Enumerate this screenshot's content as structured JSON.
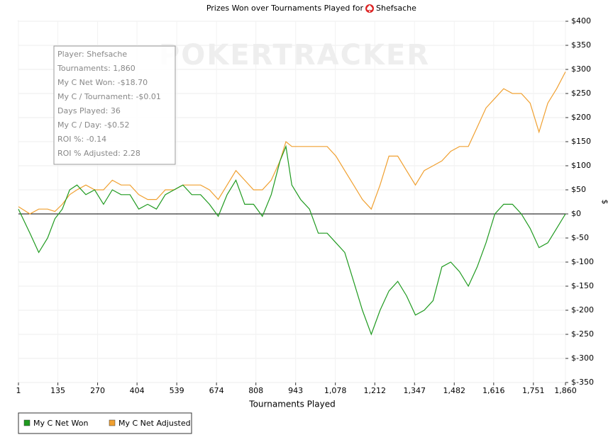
{
  "chart_data": {
    "type": "line",
    "title": "Prizes Won over Tournaments Played for",
    "player": "Shefsache",
    "watermark": "POKERTRACKER",
    "x_label": "Tournaments Played",
    "y_label": "$",
    "info_box": [
      "Player: Shefsache",
      "Tournaments: 1,860",
      "My C Net Won: -$18.70",
      "My C / Tournament: -$0.01",
      "Days Played: 36",
      "My C / Day: -$0.52",
      "ROI %: -0.14",
      "ROI % Adjusted: 2.28"
    ],
    "x": [
      1,
      40,
      70,
      100,
      125,
      150,
      175,
      200,
      230,
      260,
      290,
      320,
      350,
      380,
      410,
      440,
      470,
      500,
      530,
      560,
      590,
      620,
      650,
      680,
      710,
      740,
      770,
      800,
      830,
      860,
      890,
      910,
      930,
      960,
      990,
      1020,
      1050,
      1080,
      1110,
      1140,
      1170,
      1200,
      1230,
      1260,
      1290,
      1320,
      1350,
      1380,
      1410,
      1440,
      1470,
      1500,
      1530,
      1560,
      1590,
      1620,
      1650,
      1680,
      1710,
      1740,
      1770,
      1800,
      1830,
      1860
    ],
    "series": [
      {
        "name": "My C Net Won",
        "color": "#1f9a1f",
        "values": [
          10,
          -40,
          -80,
          -50,
          -10,
          10,
          50,
          60,
          40,
          50,
          20,
          50,
          40,
          40,
          10,
          20,
          10,
          40,
          50,
          60,
          40,
          40,
          20,
          -5,
          40,
          70,
          20,
          20,
          -5,
          40,
          110,
          140,
          60,
          30,
          10,
          -40,
          -40,
          -60,
          -80,
          -140,
          -200,
          -250,
          -200,
          -160,
          -140,
          -170,
          -210,
          -200,
          -180,
          -110,
          -100,
          -120,
          -150,
          -110,
          -60,
          0,
          20,
          20,
          0,
          -30,
          -70,
          -60,
          -30,
          0
        ]
      },
      {
        "name": "My C Net Adjusted",
        "color": "#f0a030",
        "values": [
          15,
          0,
          10,
          10,
          5,
          20,
          40,
          50,
          60,
          50,
          50,
          70,
          60,
          60,
          40,
          30,
          30,
          50,
          50,
          60,
          60,
          60,
          50,
          30,
          60,
          90,
          70,
          50,
          50,
          70,
          110,
          150,
          140,
          140,
          140,
          140,
          140,
          120,
          90,
          60,
          30,
          10,
          60,
          120,
          120,
          90,
          60,
          90,
          100,
          110,
          130,
          140,
          140,
          180,
          220,
          240,
          260,
          250,
          250,
          230,
          170,
          230,
          260,
          295
        ]
      }
    ],
    "xlim": [
      1,
      1860
    ],
    "xticks": [
      1,
      135,
      270,
      404,
      539,
      674,
      808,
      943,
      {
        "value": 1078,
        "label": "1,078"
      },
      {
        "value": 1212,
        "label": "1,212"
      },
      {
        "value": 1347,
        "label": "1,347"
      },
      {
        "value": 1482,
        "label": "1,482"
      },
      {
        "value": 1616,
        "label": "1,616"
      },
      {
        "value": 1751,
        "label": "1,751"
      },
      {
        "value": 1860,
        "label": "1,860"
      }
    ],
    "ylim": [
      -350,
      400
    ],
    "yticks": [
      {
        "value": -350,
        "label": "$-350"
      },
      {
        "value": -300,
        "label": "$-300"
      },
      {
        "value": -250,
        "label": "$-250"
      },
      {
        "value": -200,
        "label": "$-200"
      },
      {
        "value": -150,
        "label": "$-150"
      },
      {
        "value": -100,
        "label": "$-100"
      },
      {
        "value": -50,
        "label": "$-50"
      },
      {
        "value": 0,
        "label": "$0"
      },
      {
        "value": 50,
        "label": "$50"
      },
      {
        "value": 100,
        "label": "$100"
      },
      {
        "value": 150,
        "label": "$150"
      },
      {
        "value": 200,
        "label": "$200"
      },
      {
        "value": 250,
        "label": "$250"
      },
      {
        "value": 300,
        "label": "$300"
      },
      {
        "value": 350,
        "label": "$350"
      },
      {
        "value": 400,
        "label": "$400"
      }
    ],
    "grid": true
  }
}
